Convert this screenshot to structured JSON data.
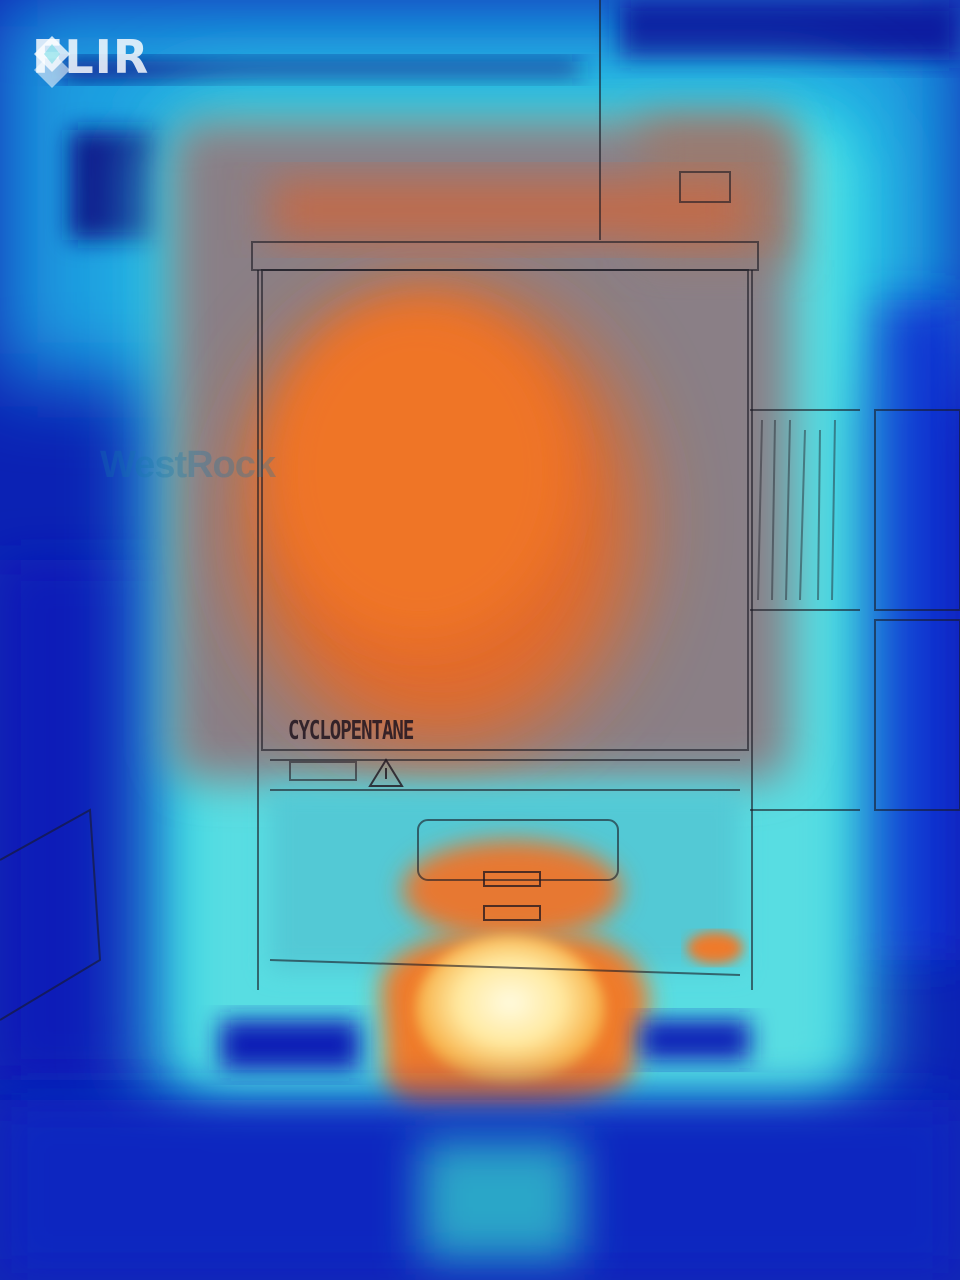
{
  "brand": {
    "logo_text": "FLIR",
    "logo_icon": "flir-diamond-icon"
  },
  "scene": {
    "background_brand_text": "WestRock",
    "appliance_label": "CYCLOPENTANE",
    "warning_icon": "warning-triangle-icon"
  },
  "palette": {
    "cold": "#0a1fa8",
    "cool": "#1fd3e0",
    "neutral": "#7e7a86",
    "warm": "#e8702a",
    "hot": "#fff1b8"
  }
}
